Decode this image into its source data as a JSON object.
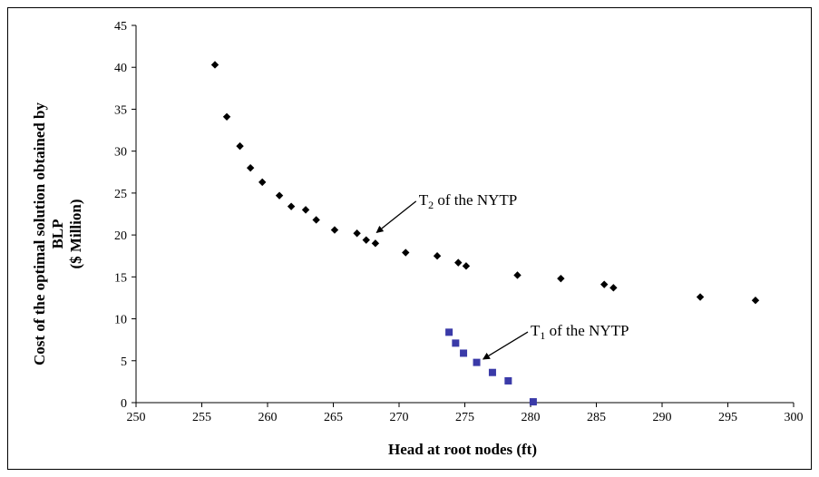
{
  "chart_data": {
    "type": "scatter",
    "xlabel": "Head at root nodes (ft)",
    "ylabel_lines": [
      "Cost of the optimal solution obtained by",
      "BLP",
      "($ Million)"
    ],
    "xlim": [
      250,
      300
    ],
    "ylim": [
      0,
      45
    ],
    "xticks": [
      "250",
      "255",
      "260",
      "265",
      "270",
      "275",
      "280",
      "285",
      "290",
      "295",
      "300"
    ],
    "yticks": [
      "0",
      "5",
      "10",
      "15",
      "20",
      "25",
      "30",
      "35",
      "40",
      "45"
    ],
    "grid": false,
    "legend": "none",
    "series": [
      {
        "marker": "diamond",
        "color": "#000000",
        "x": [
          256.0,
          256.9,
          257.9,
          258.7,
          259.6,
          260.9,
          261.8,
          262.9,
          263.7,
          265.1,
          266.8,
          267.5,
          268.2,
          270.5,
          272.9,
          274.5,
          275.1,
          279.0,
          282.3,
          285.6,
          286.3,
          292.9,
          297.1
        ],
        "y": [
          40.3,
          34.1,
          30.6,
          28.0,
          26.3,
          24.7,
          23.4,
          23.0,
          21.8,
          20.6,
          20.2,
          19.4,
          19.0,
          17.9,
          17.5,
          16.7,
          16.3,
          15.2,
          14.8,
          14.1,
          13.7,
          12.6,
          12.2
        ]
      },
      {
        "marker": "square",
        "color": "#3a3aa8",
        "x": [
          273.8,
          274.3,
          274.9,
          275.9,
          277.1,
          278.3,
          280.2
        ],
        "y": [
          8.4,
          7.1,
          5.9,
          4.8,
          3.6,
          2.6,
          0.1
        ]
      }
    ],
    "annotations": [
      {
        "sub": "2",
        "text": " of the NYTP",
        "x_text": 271.5,
        "y_text": 23.6,
        "ax": 268.3,
        "ay": 20.3
      },
      {
        "sub": "1",
        "text": " of the NYTP",
        "x_text": 280.0,
        "y_text": 8.0,
        "ax": 276.4,
        "ay": 5.2
      }
    ],
    "annotation_prefix": "T"
  }
}
